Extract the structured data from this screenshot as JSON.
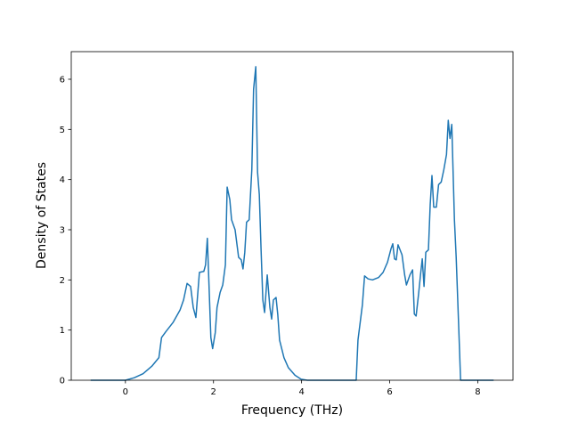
{
  "chart_data": {
    "type": "line",
    "x_label": "Frequency (THz)",
    "y_label": "Density of States",
    "x": [
      -0.79,
      0.0,
      0.2,
      0.4,
      0.6,
      0.76,
      0.82,
      0.92,
      1.08,
      1.24,
      1.32,
      1.4,
      1.48,
      1.54,
      1.6,
      1.68,
      1.78,
      1.82,
      1.86,
      1.94,
      1.98,
      2.04,
      2.08,
      2.15,
      2.21,
      2.27,
      2.31,
      2.37,
      2.41,
      2.49,
      2.57,
      2.63,
      2.67,
      2.71,
      2.75,
      2.81,
      2.87,
      2.91,
      2.96,
      3.0,
      3.04,
      3.08,
      3.12,
      3.16,
      3.22,
      3.28,
      3.32,
      3.36,
      3.42,
      3.46,
      3.5,
      3.6,
      3.7,
      3.85,
      3.99,
      4.13,
      5.24,
      5.28,
      5.38,
      5.43,
      5.51,
      5.61,
      5.75,
      5.85,
      5.95,
      6.03,
      6.07,
      6.11,
      6.15,
      6.19,
      6.28,
      6.34,
      6.38,
      6.46,
      6.52,
      6.56,
      6.6,
      6.66,
      6.7,
      6.74,
      6.78,
      6.82,
      6.88,
      6.92,
      6.96,
      7.0,
      7.06,
      7.11,
      7.17,
      7.23,
      7.29,
      7.33,
      7.37,
      7.41,
      7.47,
      7.51,
      7.57,
      7.61,
      8.36
    ],
    "values": [
      0,
      0,
      0.05,
      0.13,
      0.28,
      0.45,
      0.85,
      0.97,
      1.15,
      1.4,
      1.6,
      1.93,
      1.87,
      1.45,
      1.25,
      2.15,
      2.17,
      2.3,
      2.83,
      0.85,
      0.63,
      0.95,
      1.45,
      1.75,
      1.9,
      2.3,
      3.85,
      3.6,
      3.2,
      3.0,
      2.45,
      2.4,
      2.22,
      2.55,
      3.15,
      3.2,
      4.2,
      5.8,
      6.25,
      4.15,
      3.7,
      2.6,
      1.6,
      1.35,
      2.1,
      1.45,
      1.22,
      1.6,
      1.65,
      1.3,
      0.8,
      0.45,
      0.25,
      0.1,
      0.02,
      0,
      0,
      0.8,
      1.5,
      2.08,
      2.02,
      2.0,
      2.05,
      2.15,
      2.35,
      2.62,
      2.72,
      2.42,
      2.4,
      2.7,
      2.5,
      2.1,
      1.9,
      2.1,
      2.2,
      1.32,
      1.28,
      1.75,
      2.1,
      2.42,
      1.87,
      2.55,
      2.6,
      3.5,
      4.08,
      3.45,
      3.45,
      3.9,
      3.95,
      4.2,
      4.5,
      5.18,
      4.82,
      5.1,
      3.2,
      2.45,
      1.0,
      0,
      0
    ],
    "color": "#1f77b4",
    "xlim": [
      -1.23,
      8.8
    ],
    "ylim": [
      0,
      6.55
    ],
    "xticks": [
      0,
      2,
      4,
      6,
      8
    ],
    "yticks": [
      0,
      1,
      2,
      3,
      4,
      5,
      6
    ],
    "grid": false
  }
}
